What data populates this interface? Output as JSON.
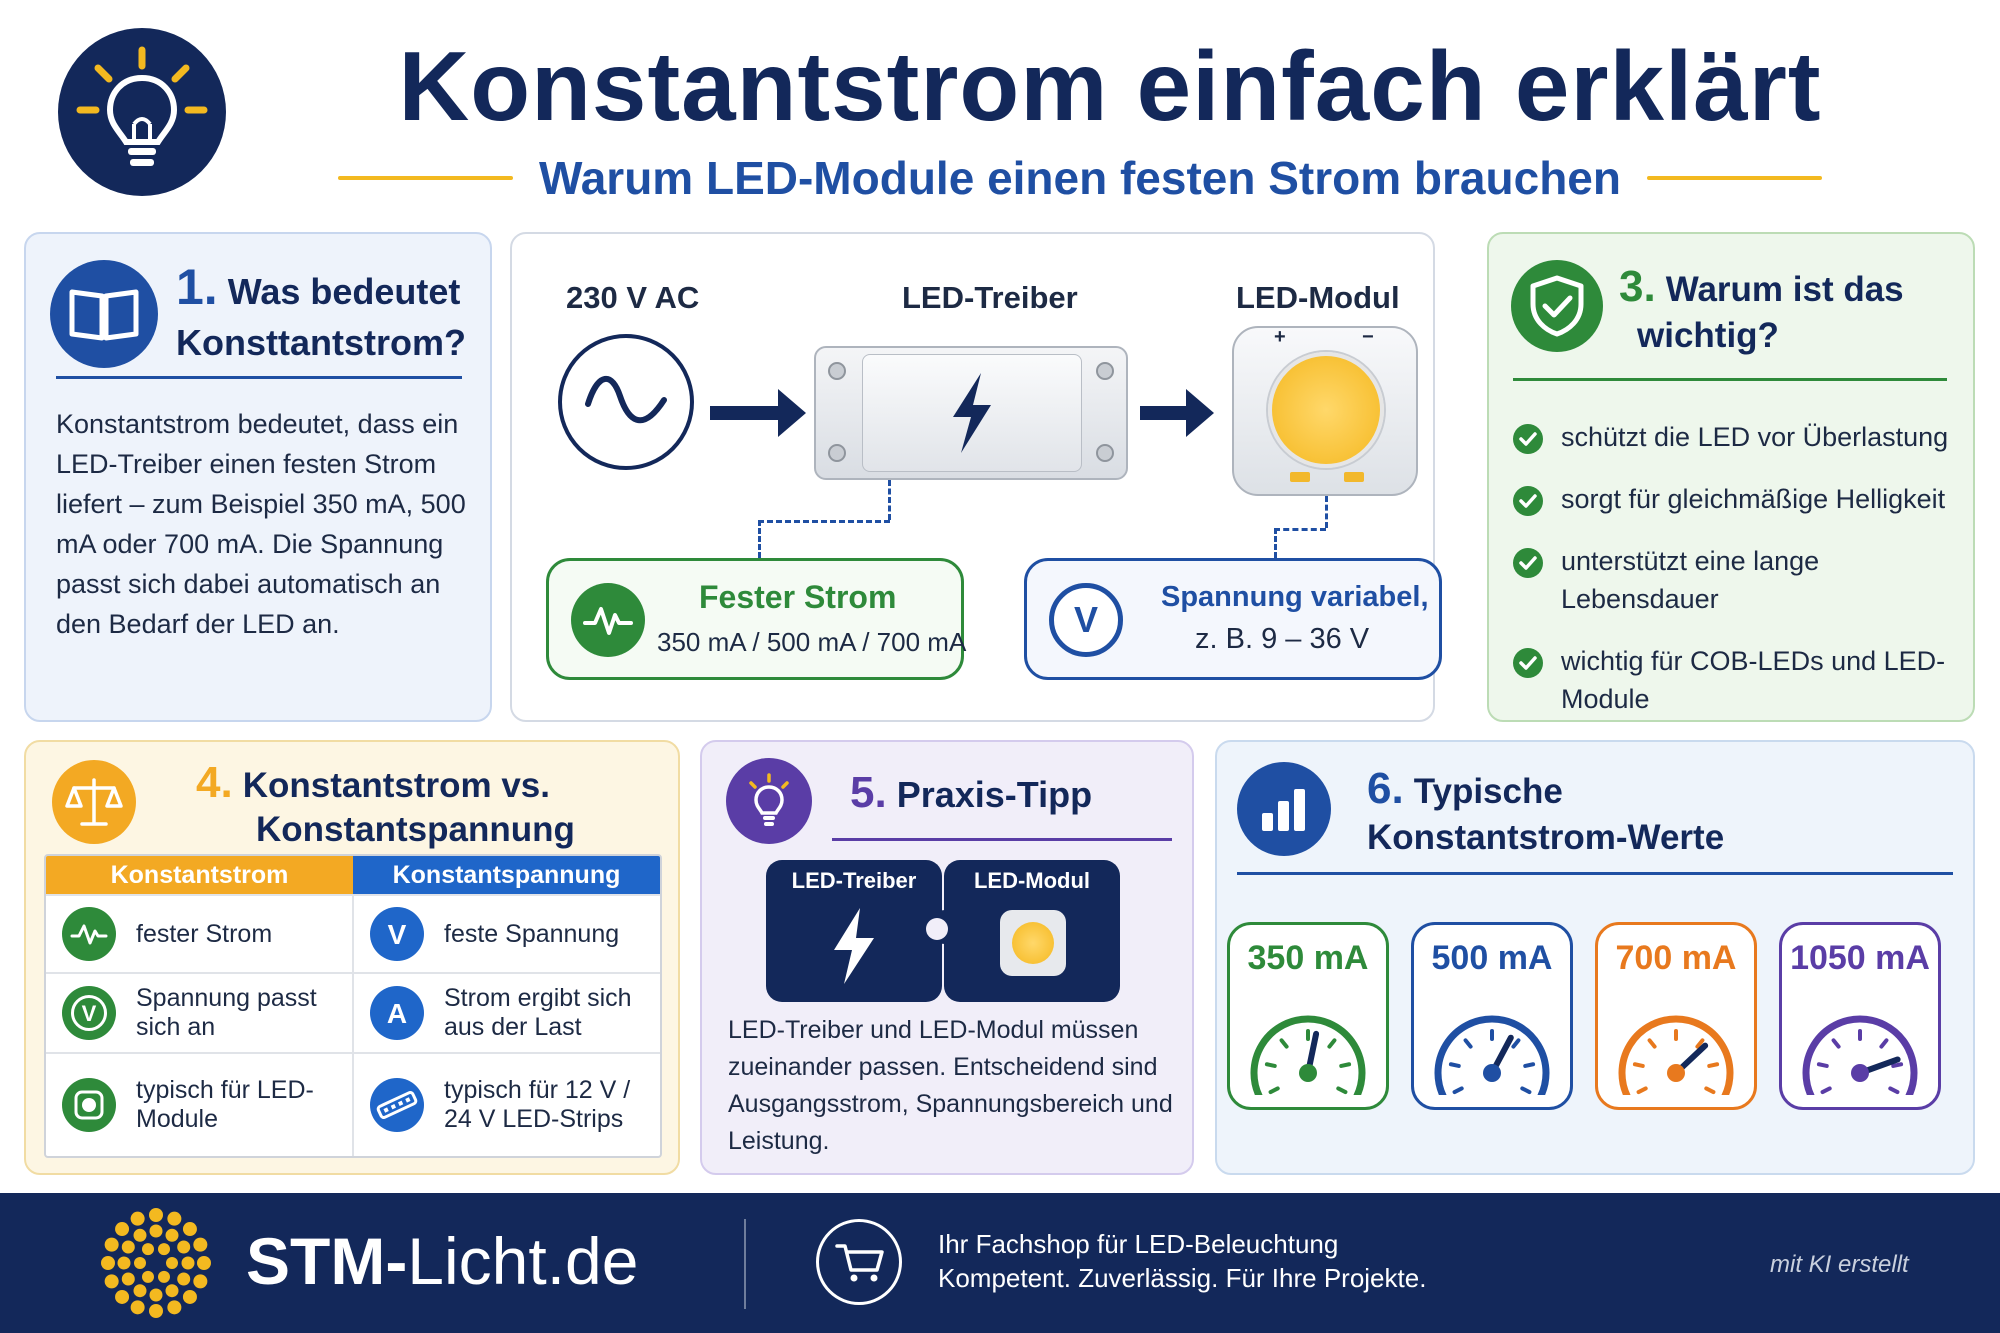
{
  "header": {
    "title": "Konstantstrom einfach erklärt",
    "subtitle": "Warum LED-Module einen festen Strom brauchen",
    "logo_icon": "lightbulb-icon"
  },
  "colors": {
    "navy": "#13285a",
    "blue": "#1f4fa3",
    "green": "#2e8a3a",
    "orange": "#f3a923",
    "purple": "#5a3da6",
    "yellow": "#f3b920"
  },
  "section1": {
    "number": "1.",
    "title_line1": "Was bedeutet",
    "title_line2": "Konsttantstrom?",
    "icon": "book-icon",
    "body": "Konstantstrom bedeutet, dass ein LED-Treiber einen festen Strom liefert – zum Beispiel 350 mA, 500 mA oder 700 mA. Die Spannung passt sich dabei automatisch an den Bedarf der LED an."
  },
  "section2": {
    "label_ac": "230 V AC",
    "label_driver": "LED-Treiber",
    "label_module": "LED-Modul",
    "plus": "+",
    "minus": "−",
    "fixed_current_title": "Fester Strom",
    "fixed_current_values": "350 mA / 500 mA / 700 mA",
    "voltage_title": "Spannung variabel,",
    "voltage_range": "z. B. 9 – 36 V",
    "voltage_icon_letter": "V"
  },
  "section3": {
    "number": "3.",
    "title_line1": "Warum ist das",
    "title_line2": "wichtig?",
    "icon": "shield-check-icon",
    "items": [
      "schützt die LED vor Überlastung",
      "sorgt für gleichmäßige Helligkeit",
      "unterstützt eine lange Lebensdauer",
      "wichtig für COB-LEDs und LED-Module"
    ]
  },
  "section4": {
    "number": "4.",
    "title_line1": "Konstantstrom vs.",
    "title_line2": "Konstantspannung",
    "icon": "scale-icon",
    "col1_header": "Konstantstrom",
    "col2_header": "Konstantspannung",
    "rows": [
      {
        "left": "fester Strom",
        "left_icon": "waveform-icon",
        "right": "feste Spannung",
        "right_icon_letter": "V"
      },
      {
        "left": "Spannung passt sich an",
        "left_icon_letter": "V",
        "right": "Strom ergibt sich aus der Last",
        "right_icon_letter": "A"
      },
      {
        "left": "typisch für LED-Module",
        "left_icon": "led-module-icon",
        "right": "typisch für 12 V / 24 V LED-Strips",
        "right_icon": "led-strip-icon"
      }
    ]
  },
  "section5": {
    "number": "5.",
    "title": "Praxis-Tipp",
    "icon": "lightbulb-icon",
    "puzzle_left": "LED-Treiber",
    "puzzle_right": "LED-Modul",
    "body": "LED-Treiber und LED-Modul müssen zueinander passen. Entscheidend sind Ausgangsstrom, Spannungsbereich und Leistung."
  },
  "section6": {
    "number": "6.",
    "title_line1": "Typische",
    "title_line2": "Konstantstrom-Werte",
    "icon": "bar-chart-icon",
    "gauges": [
      {
        "label": "350 mA",
        "color": "#2e8a3a",
        "level": 0.55
      },
      {
        "label": "500 mA",
        "color": "#1f4fa3",
        "level": 0.62
      },
      {
        "label": "700 mA",
        "color": "#e8791e",
        "level": 0.7
      },
      {
        "label": "1050 mA",
        "color": "#5a3da6",
        "level": 0.8
      }
    ]
  },
  "footer": {
    "brand_bold": "STM-",
    "brand_rest": "Licht.de",
    "tagline_line1": "Ihr Fachshop für LED-Beleuchtung",
    "tagline_line2": "Kompetent. Zuverlässig. Für Ihre Projekte.",
    "ai_note": "mit KI erstellt",
    "cart_icon": "shopping-cart-icon",
    "logo_icon": "sun-dots-logo-icon"
  }
}
